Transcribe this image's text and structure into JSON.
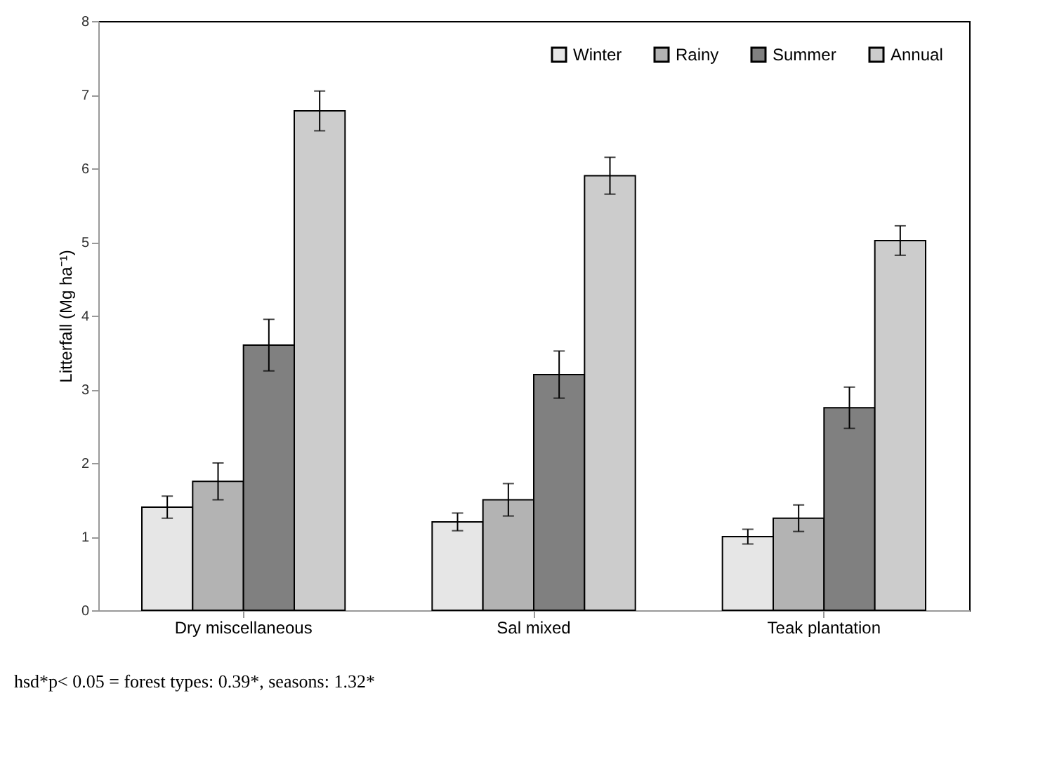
{
  "chart_data": {
    "type": "bar",
    "ylabel": "Litterfall (Mg ha⁻¹)",
    "categories": [
      "Dry miscellaneous",
      "Sal mixed",
      "Teak plantation"
    ],
    "series": [
      {
        "name": "Winter",
        "color": "#e6e6e6",
        "values": [
          1.4,
          1.2,
          1.0
        ],
        "errors": [
          0.15,
          0.12,
          0.1
        ]
      },
      {
        "name": "Rainy",
        "color": "#b3b3b3",
        "values": [
          1.75,
          1.5,
          1.25
        ],
        "errors": [
          0.25,
          0.22,
          0.18
        ]
      },
      {
        "name": "Summer",
        "color": "#808080",
        "values": [
          3.6,
          3.2,
          2.75
        ],
        "errors": [
          0.35,
          0.32,
          0.28
        ]
      },
      {
        "name": "Annual",
        "color": "#cccccc",
        "values": [
          6.78,
          5.9,
          5.02
        ],
        "errors": [
          0.27,
          0.25,
          0.2
        ]
      }
    ],
    "ylim": [
      0,
      8
    ],
    "yticks": [
      0,
      1,
      2,
      3,
      4,
      5,
      6,
      7,
      8
    ],
    "grid": false,
    "legend": "top right",
    "annotations": [
      "hsd*p< 0.05 = forest types: 0.39*, seasons: 1.32*"
    ]
  }
}
